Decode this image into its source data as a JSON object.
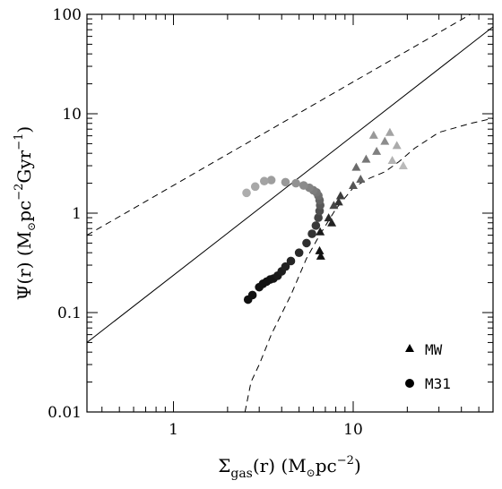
{
  "chart_data": {
    "type": "scatter",
    "xscale": "log",
    "yscale": "log",
    "xlim": [
      0.33,
      60
    ],
    "ylim": [
      0.01,
      100
    ],
    "xticks": [
      1,
      10
    ],
    "xtick_labels": [
      "1",
      "10"
    ],
    "yticks": [
      0.01,
      0.1,
      1,
      10,
      100
    ],
    "ytick_labels": [
      "0.01",
      "0.1",
      "1",
      "10",
      "100"
    ],
    "xlabel": {
      "main": "Σ",
      "sub": "gas",
      "rest": "(r)  (M",
      "sun": "⊙",
      "unit": "pc",
      "sup": "−2",
      "close": ")"
    },
    "ylabel": {
      "main": "Ψ(r)  (M",
      "sun": "⊙",
      "unit": "pc",
      "sup": "−2",
      "mid": "Gyr",
      "sup2": "−1",
      "close": ")"
    },
    "legend": {
      "position": "bottom-right",
      "entries": [
        {
          "marker": "triangle",
          "label": "MW"
        },
        {
          "marker": "circle",
          "label": "M31"
        }
      ]
    },
    "lines": [
      {
        "style": "solid",
        "points": [
          [
            0.33,
            0.05
          ],
          [
            60,
            75
          ]
        ]
      },
      {
        "style": "dashed",
        "points": [
          [
            0.33,
            0.6
          ],
          [
            45,
            100
          ]
        ]
      },
      {
        "style": "dashed",
        "points": [
          [
            2.5,
            0.01
          ],
          [
            2.7,
            0.02
          ],
          [
            3.0,
            0.03
          ],
          [
            3.5,
            0.06
          ],
          [
            4.5,
            0.15
          ],
          [
            5.5,
            0.35
          ],
          [
            6.5,
            0.6
          ],
          [
            8.0,
            1.1
          ],
          [
            10.0,
            1.8
          ],
          [
            12.0,
            2.2
          ],
          [
            15.0,
            2.6
          ],
          [
            18.0,
            3.3
          ],
          [
            22.0,
            4.5
          ],
          [
            30.0,
            6.5
          ],
          [
            45.0,
            8.0
          ],
          [
            60.0,
            9.0
          ]
        ]
      }
    ],
    "series": [
      {
        "name": "M31",
        "marker": "circle",
        "points": [
          {
            "x": 2.6,
            "y": 0.135,
            "c": "#111111"
          },
          {
            "x": 2.75,
            "y": 0.15,
            "c": "#111111"
          },
          {
            "x": 3.0,
            "y": 0.18,
            "c": "#111111"
          },
          {
            "x": 3.15,
            "y": 0.195,
            "c": "#111111"
          },
          {
            "x": 3.3,
            "y": 0.205,
            "c": "#111111"
          },
          {
            "x": 3.45,
            "y": 0.215,
            "c": "#111111"
          },
          {
            "x": 3.6,
            "y": 0.22,
            "c": "#151515"
          },
          {
            "x": 3.8,
            "y": 0.235,
            "c": "#1a1a1a"
          },
          {
            "x": 4.0,
            "y": 0.26,
            "c": "#1e1e1e"
          },
          {
            "x": 4.2,
            "y": 0.29,
            "c": "#222222"
          },
          {
            "x": 4.5,
            "y": 0.33,
            "c": "#252525"
          },
          {
            "x": 5.0,
            "y": 0.4,
            "c": "#2a2a2a"
          },
          {
            "x": 5.5,
            "y": 0.5,
            "c": "#2e2e2e"
          },
          {
            "x": 5.9,
            "y": 0.62,
            "c": "#333333"
          },
          {
            "x": 6.2,
            "y": 0.75,
            "c": "#3a3a3a"
          },
          {
            "x": 6.4,
            "y": 0.9,
            "c": "#444444"
          },
          {
            "x": 6.5,
            "y": 1.05,
            "c": "#4f4f4f"
          },
          {
            "x": 6.55,
            "y": 1.2,
            "c": "#5a5a5a"
          },
          {
            "x": 6.5,
            "y": 1.35,
            "c": "#656565"
          },
          {
            "x": 6.4,
            "y": 1.5,
            "c": "#6e6e6e"
          },
          {
            "x": 6.25,
            "y": 1.62,
            "c": "#767676"
          },
          {
            "x": 6.0,
            "y": 1.7,
            "c": "#7d7d7d"
          },
          {
            "x": 5.7,
            "y": 1.8,
            "c": "#848484"
          },
          {
            "x": 5.3,
            "y": 1.9,
            "c": "#8b8b8b"
          },
          {
            "x": 4.8,
            "y": 2.0,
            "c": "#929292"
          },
          {
            "x": 4.2,
            "y": 2.05,
            "c": "#999999"
          },
          {
            "x": 3.5,
            "y": 2.15,
            "c": "#9e9e9e"
          },
          {
            "x": 3.2,
            "y": 2.1,
            "c": "#a3a3a3"
          },
          {
            "x": 2.85,
            "y": 1.85,
            "c": "#a8a8a8"
          },
          {
            "x": 2.55,
            "y": 1.6,
            "c": "#adadad"
          }
        ]
      },
      {
        "name": "MW",
        "marker": "triangle",
        "points": [
          {
            "x": 6.6,
            "y": 0.37,
            "c": "#111111"
          },
          {
            "x": 6.5,
            "y": 0.42,
            "c": "#111111"
          },
          {
            "x": 6.55,
            "y": 0.65,
            "c": "#1a1a1a"
          },
          {
            "x": 7.6,
            "y": 0.8,
            "c": "#222222"
          },
          {
            "x": 7.3,
            "y": 0.9,
            "c": "#2a2a2a"
          },
          {
            "x": 8.3,
            "y": 1.3,
            "c": "#333333"
          },
          {
            "x": 8.5,
            "y": 1.5,
            "c": "#3d3d3d"
          },
          {
            "x": 7.8,
            "y": 1.2,
            "c": "#474747"
          },
          {
            "x": 10.0,
            "y": 1.9,
            "c": "#555555"
          },
          {
            "x": 11.0,
            "y": 2.2,
            "c": "#606060"
          },
          {
            "x": 10.4,
            "y": 2.9,
            "c": "#6b6b6b"
          },
          {
            "x": 11.8,
            "y": 3.5,
            "c": "#767676"
          },
          {
            "x": 13.5,
            "y": 4.2,
            "c": "#808080"
          },
          {
            "x": 15.0,
            "y": 5.3,
            "c": "#8c8c8c"
          },
          {
            "x": 13.0,
            "y": 6.1,
            "c": "#999999"
          },
          {
            "x": 16.0,
            "y": 6.5,
            "c": "#a3a3a3"
          },
          {
            "x": 17.5,
            "y": 4.8,
            "c": "#ababab"
          },
          {
            "x": 16.5,
            "y": 3.4,
            "c": "#b3b3b3"
          },
          {
            "x": 19.0,
            "y": 3.0,
            "c": "#bbbbbb"
          }
        ]
      }
    ]
  }
}
